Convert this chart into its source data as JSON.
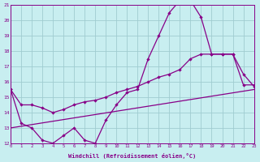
{
  "xlabel": "Windchill (Refroidissement éolien,°C)",
  "background_color": "#c8eef0",
  "grid_color": "#a0ccd0",
  "line_color": "#880088",
  "xmin": 0,
  "xmax": 23,
  "ymin": 12,
  "ymax": 21,
  "line1_x": [
    0,
    1,
    2,
    3,
    4,
    5,
    6,
    7,
    8,
    9,
    10,
    11,
    12,
    13,
    14,
    15,
    16,
    17,
    18,
    19,
    20,
    21,
    22,
    23
  ],
  "line1_y": [
    15.5,
    13.3,
    13.0,
    12.2,
    12.0,
    12.5,
    13.0,
    12.2,
    12.0,
    13.5,
    14.5,
    15.3,
    15.5,
    17.5,
    19.0,
    20.5,
    21.3,
    21.3,
    20.2,
    17.8,
    17.8,
    17.8,
    16.5,
    15.7
  ],
  "line2_x": [
    0,
    1,
    2,
    3,
    4,
    5,
    6,
    7,
    8,
    9,
    10,
    11,
    12,
    13,
    14,
    15,
    16,
    17,
    18,
    19,
    20,
    21,
    22,
    23
  ],
  "line2_y": [
    15.5,
    14.5,
    14.5,
    14.3,
    14.0,
    14.2,
    14.5,
    14.7,
    14.8,
    15.0,
    15.3,
    15.5,
    15.7,
    16.0,
    16.3,
    16.5,
    16.8,
    17.5,
    17.8,
    17.8,
    17.8,
    17.8,
    15.8,
    15.8
  ],
  "line3_x": [
    0,
    23
  ],
  "line3_y": [
    13.0,
    15.5
  ]
}
